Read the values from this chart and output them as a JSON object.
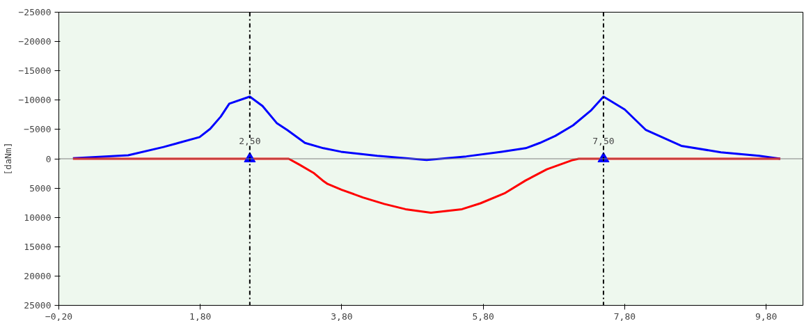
{
  "chart_data": {
    "type": "line",
    "ylabel": "[daNm]",
    "xlim": [
      -0.2,
      10.32
    ],
    "ylim": [
      25000,
      -25000
    ],
    "xticks": [
      {
        "value": -0.2,
        "label": "−0,20"
      },
      {
        "value": 1.8,
        "label": "1,80"
      },
      {
        "value": 3.8,
        "label": "3,80"
      },
      {
        "value": 5.8,
        "label": "5,80"
      },
      {
        "value": 7.8,
        "label": "7,80"
      },
      {
        "value": 9.8,
        "label": "9,80"
      }
    ],
    "yticks": [
      {
        "value": -25000,
        "label": "−25000"
      },
      {
        "value": -20000,
        "label": "−20000"
      },
      {
        "value": -15000,
        "label": "−15000"
      },
      {
        "value": -10000,
        "label": "−10000"
      },
      {
        "value": -5000,
        "label": "−5000"
      },
      0,
      5000,
      10000,
      15000,
      20000,
      25000
    ],
    "grid": false,
    "marker": "none",
    "line_style": "solid",
    "series": [
      {
        "color": "#0000ff",
        "x": [
          0,
          0.78,
          1.28,
          1.79,
          1.94,
          2.09,
          2.21,
          2.5,
          2.68,
          2.88,
          3.03,
          3.28,
          3.54,
          3.79,
          4.3,
          5.0,
          5.56,
          6.06,
          6.4,
          6.6,
          6.82,
          7.07,
          7.32,
          7.5,
          7.8,
          8.1,
          8.6,
          9.16,
          9.7,
          10
        ],
        "values": [
          -100,
          -600,
          -2000,
          -3700,
          -5100,
          -7200,
          -9400,
          -10600,
          -9000,
          -6100,
          -4900,
          -2700,
          -1800,
          -1200,
          -500,
          200,
          -400,
          -1200,
          -1800,
          -2700,
          -3900,
          -5700,
          -8200,
          -10600,
          -8400,
          -4900,
          -2200,
          -1100,
          -500,
          0
        ]
      },
      {
        "color": "#ff0000",
        "x": [
          0,
          3.05,
          3.2,
          3.4,
          3.53,
          3.6,
          3.8,
          4.1,
          4.4,
          4.7,
          5.06,
          5.5,
          5.76,
          6.1,
          6.4,
          6.7,
          7.07,
          7.15,
          10
        ],
        "values": [
          0,
          0,
          1000,
          2400,
          3700,
          4300,
          5300,
          6600,
          7700,
          8600,
          9200,
          8600,
          7600,
          5900,
          3700,
          1800,
          200,
          0,
          0
        ]
      },
      {
        "type": "scatter",
        "marker": "triangle",
        "color": "#0000ff",
        "x": [
          2.5,
          7.5
        ],
        "values": [
          0,
          0
        ]
      }
    ],
    "ref_lines": [
      {
        "axis": "x",
        "value": 2.5,
        "label": "2,50",
        "color": "#000000",
        "line_style": "dashdot"
      },
      {
        "axis": "x",
        "value": 7.5,
        "label": "7,50",
        "color": "#000000",
        "line_style": "dashdot"
      },
      {
        "axis": "y",
        "value": 0,
        "label": null,
        "color": "#808080",
        "line_style": "solid"
      }
    ]
  }
}
